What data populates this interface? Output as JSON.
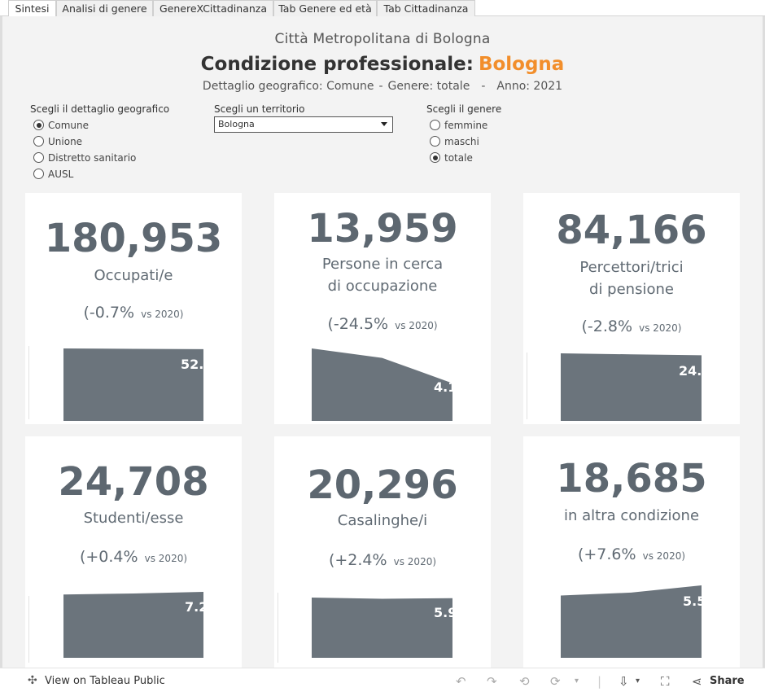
{
  "tabs": [
    "Sintesi",
    "Analisi di genere",
    "GenereXCittadinanza",
    "Tab Genere ed età",
    "Tab Cittadinanza"
  ],
  "header": {
    "org": "Città Metropolitana di Bologna",
    "title": "Condizione professionale:",
    "territory": "Bologna",
    "detail": "Dettaglio geografico: Comune",
    "gender": "Genere: totale",
    "year": "Anno: 2021"
  },
  "filters": {
    "geo_label": "Scegli il dettaglio geografico",
    "geo_options": [
      "Comune",
      "Unione",
      "Distretto sanitario",
      "AUSL"
    ],
    "geo_selected": 0,
    "territory_label": "Scegli un territorio",
    "territory_value": "Bologna",
    "gender_label": "Scegli il genere",
    "gender_options": [
      "femmine",
      "maschi",
      "totale"
    ],
    "gender_selected": 2
  },
  "cards": [
    {
      "value": "180,953",
      "label_lines": [
        "Occupati/e"
      ],
      "delta": "(-0.7%",
      "vs": "vs 2020)",
      "spark_label": "52.",
      "spark": [
        1.0,
        0.994,
        0.99
      ]
    },
    {
      "value": "13,959",
      "label_lines": [
        "Persone in cerca",
        "di occupazione"
      ],
      "delta": "(-24.5%",
      "vs": "vs 2020)",
      "spark_label": "4.1",
      "spark": [
        1.0,
        0.87,
        0.52
      ]
    },
    {
      "value": "84,166",
      "label_lines": [
        "Percettori/trici",
        "di pensione"
      ],
      "delta": "(-2.8%",
      "vs": "vs 2020)",
      "spark_label": "24.",
      "spark": [
        1.0,
        0.985,
        0.972
      ]
    },
    {
      "value": "24,708",
      "label_lines": [
        "Studenti/esse"
      ],
      "delta": "(+0.4%",
      "vs": "vs 2020)",
      "spark_label": "7.2",
      "spark": [
        0.96,
        0.975,
        1.0
      ]
    },
    {
      "value": "20,296",
      "label_lines": [
        "Casalinghe/i"
      ],
      "delta": "(+2.4%",
      "vs": "vs 2020)",
      "spark_label": "5.9",
      "spark": [
        1.0,
        0.98,
        0.99
      ]
    },
    {
      "value": "18,685",
      "label_lines": [
        "in altra condizione"
      ],
      "delta": "(+7.6%",
      "vs": "vs 2020)",
      "spark_label": "5.5",
      "spark": [
        0.86,
        0.9,
        1.0
      ]
    }
  ],
  "toolbar": {
    "view_label": "View on Tableau Public",
    "share_label": "Share"
  }
}
